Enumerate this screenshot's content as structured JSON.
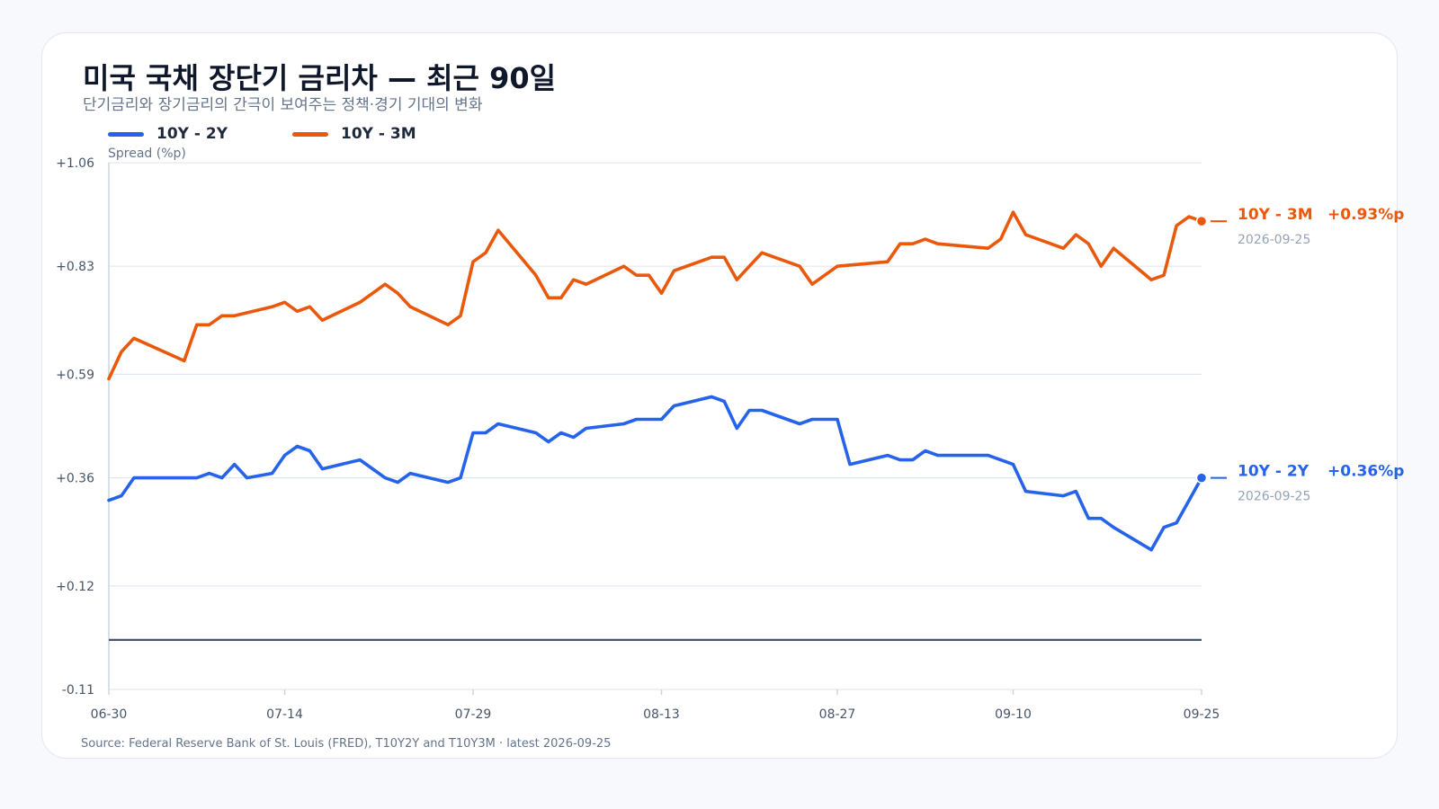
{
  "title": "미국 국채 장단기 금리차 — 최근 90일",
  "subtitle": "단기금리와 장기금리의 간극이 보여주는 정책·경기 기대의 변화",
  "source": "Source: Federal Reserve Bank of St. Louis (FRED), T10Y2Y and T10Y3M · latest 2026-09-25",
  "colors": {
    "series_10y2y": "#2563eb",
    "series_10y3m": "#ea580c",
    "zero_line": "#475569",
    "grid": "#e2e8f0",
    "axis": "#cbd5e1",
    "tick_text": "#475569"
  },
  "chart_data": {
    "type": "line",
    "ylabel": "Spread (%p)",
    "ylim": [
      -0.11,
      1.06
    ],
    "yticks": [
      1.06,
      0.83,
      0.59,
      0.36,
      0.12,
      -0.11
    ],
    "ytick_labels": [
      "+1.06",
      "+0.83",
      "+0.59",
      "+0.36",
      "+0.12",
      "-0.11"
    ],
    "zero_line": 0,
    "xlim": [
      "2026-06-30",
      "2026-09-25"
    ],
    "xticks": [
      "2026-06-30",
      "2026-07-14",
      "2026-07-29",
      "2026-08-13",
      "2026-08-27",
      "2026-09-10",
      "2026-09-25"
    ],
    "xtick_labels": [
      "06-30",
      "07-14",
      "07-29",
      "08-13",
      "08-27",
      "09-10",
      "09-25"
    ],
    "grid": "horizontal",
    "legend": "top-left",
    "series": [
      {
        "name": "10Y - 2Y",
        "color": "#2563eb",
        "end_label": "10Y - 2Y",
        "end_value_label": "+0.36%p",
        "end_date_label": "2026-09-25",
        "points": [
          [
            "2026-06-30",
            0.31
          ],
          [
            "2026-07-01",
            0.32
          ],
          [
            "2026-07-02",
            0.36
          ],
          [
            "2026-07-07",
            0.36
          ],
          [
            "2026-07-08",
            0.37
          ],
          [
            "2026-07-09",
            0.36
          ],
          [
            "2026-07-10",
            0.39
          ],
          [
            "2026-07-11",
            0.36
          ],
          [
            "2026-07-13",
            0.37
          ],
          [
            "2026-07-14",
            0.41
          ],
          [
            "2026-07-15",
            0.43
          ],
          [
            "2026-07-16",
            0.42
          ],
          [
            "2026-07-17",
            0.38
          ],
          [
            "2026-07-20",
            0.4
          ],
          [
            "2026-07-21",
            0.38
          ],
          [
            "2026-07-22",
            0.36
          ],
          [
            "2026-07-23",
            0.35
          ],
          [
            "2026-07-24",
            0.37
          ],
          [
            "2026-07-27",
            0.35
          ],
          [
            "2026-07-28",
            0.36
          ],
          [
            "2026-07-29",
            0.46
          ],
          [
            "2026-07-30",
            0.46
          ],
          [
            "2026-07-31",
            0.48
          ],
          [
            "2026-08-03",
            0.46
          ],
          [
            "2026-08-04",
            0.44
          ],
          [
            "2026-08-05",
            0.46
          ],
          [
            "2026-08-06",
            0.45
          ],
          [
            "2026-08-07",
            0.47
          ],
          [
            "2026-08-10",
            0.48
          ],
          [
            "2026-08-11",
            0.49
          ],
          [
            "2026-08-13",
            0.49
          ],
          [
            "2026-08-14",
            0.52
          ],
          [
            "2026-08-17",
            0.54
          ],
          [
            "2026-08-18",
            0.53
          ],
          [
            "2026-08-19",
            0.47
          ],
          [
            "2026-08-20",
            0.51
          ],
          [
            "2026-08-21",
            0.51
          ],
          [
            "2026-08-24",
            0.48
          ],
          [
            "2026-08-25",
            0.49
          ],
          [
            "2026-08-27",
            0.49
          ],
          [
            "2026-08-28",
            0.39
          ],
          [
            "2026-08-31",
            0.41
          ],
          [
            "2026-09-01",
            0.4
          ],
          [
            "2026-09-02",
            0.4
          ],
          [
            "2026-09-03",
            0.42
          ],
          [
            "2026-09-04",
            0.41
          ],
          [
            "2026-09-08",
            0.41
          ],
          [
            "2026-09-09",
            0.4
          ],
          [
            "2026-09-10",
            0.39
          ],
          [
            "2026-09-11",
            0.33
          ],
          [
            "2026-09-14",
            0.32
          ],
          [
            "2026-09-15",
            0.33
          ],
          [
            "2026-09-16",
            0.27
          ],
          [
            "2026-09-17",
            0.27
          ],
          [
            "2026-09-18",
            0.25
          ],
          [
            "2026-09-21",
            0.2
          ],
          [
            "2026-09-22",
            0.25
          ],
          [
            "2026-09-23",
            0.26
          ],
          [
            "2026-09-25",
            0.36
          ]
        ]
      },
      {
        "name": "10Y - 3M",
        "color": "#ea580c",
        "end_label": "10Y - 3M",
        "end_value_label": "+0.93%p",
        "end_date_label": "2026-09-25",
        "points": [
          [
            "2026-06-30",
            0.58
          ],
          [
            "2026-07-01",
            0.64
          ],
          [
            "2026-07-02",
            0.67
          ],
          [
            "2026-07-06",
            0.62
          ],
          [
            "2026-07-07",
            0.7
          ],
          [
            "2026-07-08",
            0.7
          ],
          [
            "2026-07-09",
            0.72
          ],
          [
            "2026-07-10",
            0.72
          ],
          [
            "2026-07-13",
            0.74
          ],
          [
            "2026-07-14",
            0.75
          ],
          [
            "2026-07-15",
            0.73
          ],
          [
            "2026-07-16",
            0.74
          ],
          [
            "2026-07-17",
            0.71
          ],
          [
            "2026-07-20",
            0.75
          ],
          [
            "2026-07-22",
            0.79
          ],
          [
            "2026-07-23",
            0.77
          ],
          [
            "2026-07-24",
            0.74
          ],
          [
            "2026-07-27",
            0.7
          ],
          [
            "2026-07-28",
            0.72
          ],
          [
            "2026-07-29",
            0.84
          ],
          [
            "2026-07-30",
            0.86
          ],
          [
            "2026-07-31",
            0.91
          ],
          [
            "2026-08-03",
            0.81
          ],
          [
            "2026-08-04",
            0.76
          ],
          [
            "2026-08-05",
            0.76
          ],
          [
            "2026-08-06",
            0.8
          ],
          [
            "2026-08-07",
            0.79
          ],
          [
            "2026-08-10",
            0.83
          ],
          [
            "2026-08-11",
            0.81
          ],
          [
            "2026-08-12",
            0.81
          ],
          [
            "2026-08-13",
            0.77
          ],
          [
            "2026-08-14",
            0.82
          ],
          [
            "2026-08-17",
            0.85
          ],
          [
            "2026-08-18",
            0.85
          ],
          [
            "2026-08-19",
            0.8
          ],
          [
            "2026-08-20",
            0.83
          ],
          [
            "2026-08-21",
            0.86
          ],
          [
            "2026-08-24",
            0.83
          ],
          [
            "2026-08-25",
            0.79
          ],
          [
            "2026-08-26",
            0.81
          ],
          [
            "2026-08-27",
            0.83
          ],
          [
            "2026-08-31",
            0.84
          ],
          [
            "2026-09-01",
            0.88
          ],
          [
            "2026-09-02",
            0.88
          ],
          [
            "2026-09-03",
            0.89
          ],
          [
            "2026-09-04",
            0.88
          ],
          [
            "2026-09-08",
            0.87
          ],
          [
            "2026-09-09",
            0.89
          ],
          [
            "2026-09-10",
            0.95
          ],
          [
            "2026-09-11",
            0.9
          ],
          [
            "2026-09-14",
            0.87
          ],
          [
            "2026-09-15",
            0.9
          ],
          [
            "2026-09-16",
            0.88
          ],
          [
            "2026-09-17",
            0.83
          ],
          [
            "2026-09-18",
            0.87
          ],
          [
            "2026-09-21",
            0.8
          ],
          [
            "2026-09-22",
            0.81
          ],
          [
            "2026-09-23",
            0.92
          ],
          [
            "2026-09-24",
            0.94
          ],
          [
            "2026-09-25",
            0.93
          ]
        ]
      }
    ]
  }
}
